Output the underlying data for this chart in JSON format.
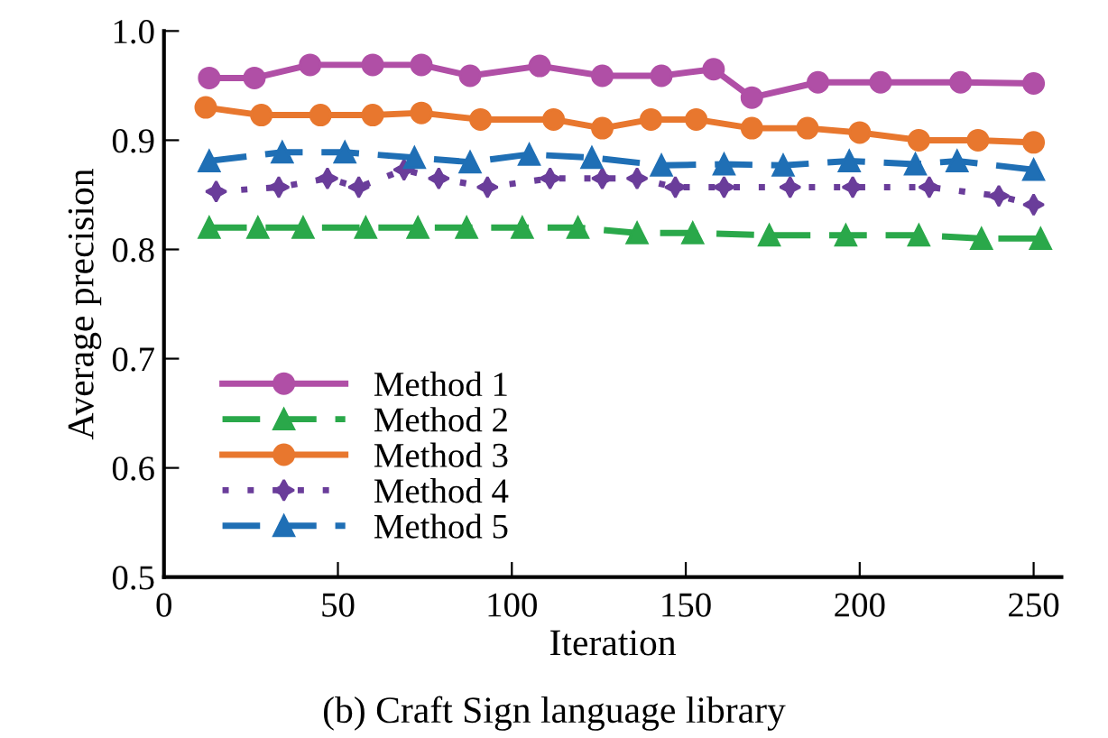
{
  "chart_data": {
    "type": "line",
    "title": "(b) Craft Sign language library",
    "xlabel": "Iteration",
    "ylabel": "Average precision",
    "xlim": [
      0,
      258
    ],
    "xticks": [
      0,
      50,
      100,
      150,
      200,
      250
    ],
    "ylim": [
      0.5,
      1.0
    ],
    "yticks": [
      0.5,
      0.6,
      0.7,
      0.8,
      0.9,
      {
        "value": 1.0,
        "label": "1.0"
      }
    ],
    "grid": false,
    "legend": "bottom left",
    "series": [
      {
        "name": "Method 1",
        "color": "#b04fa6",
        "marker": "circle",
        "line_style": "solid",
        "x": [
          13,
          26,
          42,
          60,
          74,
          88,
          108,
          126,
          143,
          158,
          169,
          188,
          206,
          229,
          250
        ],
        "values": [
          0.957,
          0.957,
          0.969,
          0.969,
          0.969,
          0.959,
          0.968,
          0.959,
          0.959,
          0.965,
          0.939,
          0.953,
          0.953,
          0.953,
          0.952
        ]
      },
      {
        "name": "Method 2",
        "color": "#2aa84a",
        "marker": "triangle",
        "line_style": "dashed",
        "x": [
          13,
          27,
          40,
          58,
          73,
          87,
          103,
          119,
          136,
          152,
          174,
          196,
          217,
          235,
          252
        ],
        "values": [
          0.82,
          0.82,
          0.82,
          0.82,
          0.82,
          0.82,
          0.82,
          0.82,
          0.815,
          0.815,
          0.813,
          0.813,
          0.813,
          0.81,
          0.81
        ]
      },
      {
        "name": "Method 3",
        "color": "#e8772e",
        "marker": "circle",
        "line_style": "solid",
        "x": [
          12,
          28,
          45,
          60,
          74,
          91,
          112,
          126,
          140,
          153,
          169,
          185,
          200,
          217,
          234,
          250
        ],
        "values": [
          0.93,
          0.923,
          0.923,
          0.923,
          0.925,
          0.919,
          0.919,
          0.911,
          0.919,
          0.919,
          0.911,
          0.911,
          0.907,
          0.9,
          0.9,
          0.898
        ]
      },
      {
        "name": "Method 4",
        "color": "#6a3d9a",
        "marker": "star",
        "line_style": "dotted",
        "x": [
          15,
          33,
          47,
          56,
          69,
          79,
          93,
          111,
          126,
          136,
          147,
          161,
          180,
          198,
          220,
          240,
          250
        ],
        "values": [
          0.853,
          0.857,
          0.865,
          0.857,
          0.873,
          0.865,
          0.857,
          0.865,
          0.865,
          0.865,
          0.857,
          0.857,
          0.857,
          0.857,
          0.857,
          0.849,
          0.841
        ]
      },
      {
        "name": "Method 5",
        "color": "#1f6fb5",
        "marker": "triangle",
        "line_style": "dashed",
        "x": [
          13,
          34,
          52,
          72,
          88,
          105,
          123,
          143,
          161,
          178,
          197,
          216,
          228,
          250
        ],
        "values": [
          0.881,
          0.889,
          0.889,
          0.884,
          0.88,
          0.887,
          0.884,
          0.877,
          0.878,
          0.877,
          0.881,
          0.878,
          0.881,
          0.873
        ]
      }
    ]
  }
}
